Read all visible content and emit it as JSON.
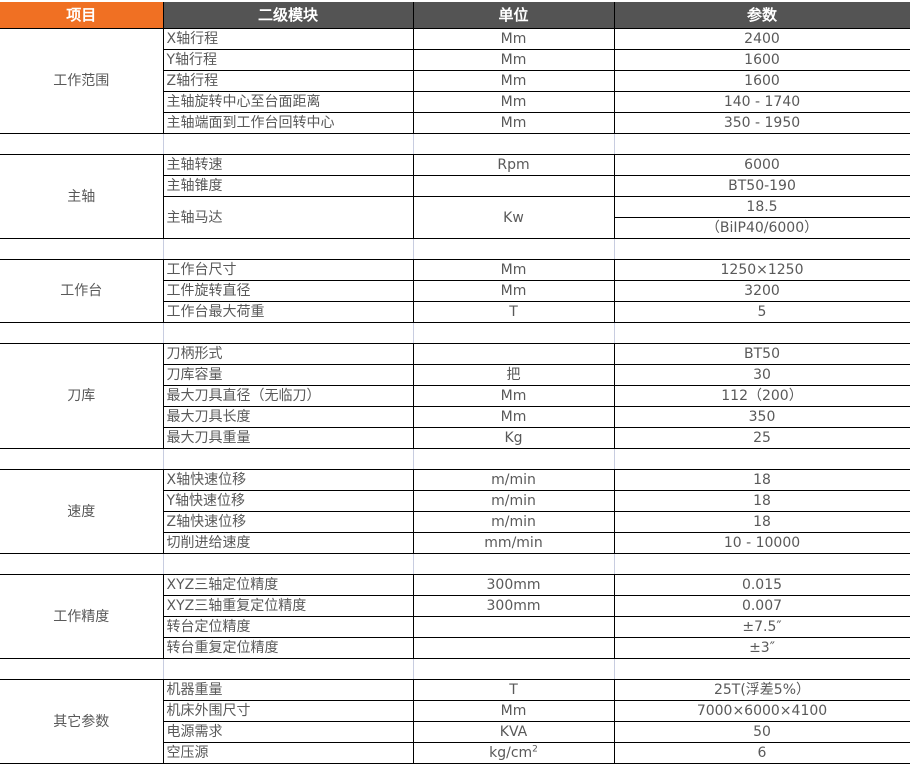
{
  "header": {
    "col1": "项目",
    "col2": "二级模块",
    "col3": "单位",
    "col4": "参数"
  },
  "colors": {
    "header_accent": "#F07023",
    "header_dark": "#545454"
  },
  "groups": [
    {
      "name": "工作范围",
      "rows": [
        [
          "X轴行程",
          "Mm",
          "2400"
        ],
        [
          "Y轴行程",
          "Mm",
          "1600"
        ],
        [
          "Z轴行程",
          "Mm",
          "1600"
        ],
        [
          "主轴旋转中心至台面距离",
          "Mm",
          "140 - 1740"
        ],
        [
          "主轴端面到工作台回转中心",
          "Mm",
          "350 - 1950"
        ]
      ]
    },
    {
      "name": "主轴",
      "rows": [
        [
          "主轴转速",
          "Rpm",
          "6000"
        ],
        [
          "主轴锥度",
          "",
          "BT50-190"
        ]
      ],
      "motor": {
        "name": "主轴马达",
        "unit": "Kw",
        "value": "18.5",
        "value2": "（BiIP40/6000）"
      }
    },
    {
      "name": "工作台",
      "rows": [
        [
          "工作台尺寸",
          "Mm",
          "1250×1250"
        ],
        [
          "工件旋转直径",
          "Mm",
          "3200"
        ],
        [
          "工作台最大荷重",
          "T",
          "5"
        ]
      ]
    },
    {
      "name": "刀库",
      "rows": [
        [
          "刀柄形式",
          "",
          "BT50"
        ],
        [
          "刀库容量",
          "把",
          "30"
        ],
        [
          "最大刀具直径（无临刀）",
          "Mm",
          "112（200）"
        ],
        [
          "最大刀具长度",
          "Mm",
          "350"
        ],
        [
          "最大刀具重量",
          "Kg",
          "25"
        ]
      ]
    },
    {
      "name": "速度",
      "rows": [
        [
          "X轴快速位移",
          "m/min",
          "18"
        ],
        [
          "Y轴快速位移",
          "m/min",
          "18"
        ],
        [
          "Z轴快速位移",
          "m/min",
          "18"
        ],
        [
          "切削进给速度",
          "mm/min",
          "10 - 10000"
        ]
      ]
    },
    {
      "name": "工作精度",
      "rows": [
        [
          "XYZ三轴定位精度",
          "300mm",
          "0.015"
        ],
        [
          "XYZ三轴重复定位精度",
          "300mm",
          "0.007"
        ],
        [
          "转台定位精度",
          "",
          "±7.5″"
        ],
        [
          "转台重复定位精度",
          "",
          "±3″"
        ]
      ]
    },
    {
      "name": "其它参数",
      "rows": [
        [
          "机器重量",
          "T",
          "25T(浮差5%）"
        ],
        [
          "机床外围尺寸",
          "Mm",
          "7000×6000×4100"
        ],
        [
          "电源需求",
          "KVA",
          "50"
        ],
        [
          "空压源",
          "kg/cm",
          "6"
        ]
      ],
      "last_unit_sup": "2"
    }
  ]
}
